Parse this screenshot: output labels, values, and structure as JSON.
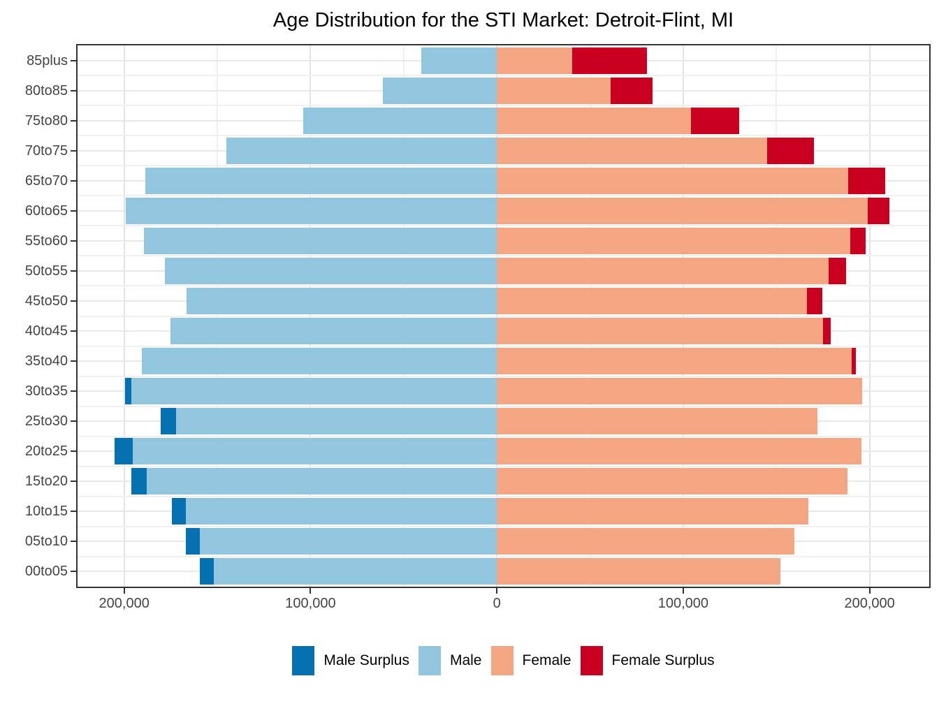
{
  "title": "Age Distribution for the STI Market: Detroit-Flint, MI",
  "colors": {
    "male_surplus": "#0571b0",
    "male": "#92c5de",
    "female": "#f4a582",
    "female_surplus": "#ca0020"
  },
  "legend": {
    "position": "bottom",
    "items": [
      {
        "label": "Male Surplus",
        "key": "male_surplus"
      },
      {
        "label": "Male",
        "key": "male"
      },
      {
        "label": "Female",
        "key": "female"
      },
      {
        "label": "Female Surplus",
        "key": "female_surplus"
      }
    ]
  },
  "chart_data": {
    "type": "bar",
    "subtype": "population-pyramid-horizontal",
    "title": "Age Distribution for the STI Market: Detroit-Flint, MI",
    "categories_top_to_bottom": [
      "85plus",
      "80to85",
      "75to80",
      "70to75",
      "65to70",
      "60to65",
      "55to60",
      "50to55",
      "45to50",
      "40to45",
      "35to40",
      "30to35",
      "25to30",
      "20to25",
      "15to20",
      "10to15",
      "05to10",
      "00to05"
    ],
    "series": [
      {
        "name": "Male",
        "side": "left",
        "values": [
          40500,
          61000,
          104000,
          145000,
          188500,
          199000,
          189500,
          178000,
          166500,
          175000,
          190500,
          199500,
          180500,
          205000,
          196000,
          174500,
          167000,
          159500
        ]
      },
      {
        "name": "Female",
        "side": "right",
        "values": [
          80500,
          83500,
          130000,
          170000,
          208500,
          210500,
          198000,
          187500,
          174500,
          179000,
          192500,
          196000,
          172000,
          195500,
          188000,
          167000,
          159500,
          152000
        ]
      }
    ],
    "segment_rule": "matched = min(male,female) drawn as Male/Female; excess drawn as Male Surplus (far left) or Female Surplus (far right)",
    "xlim": [
      -225000,
      232000
    ],
    "x_tick_values": [
      -200000,
      -100000,
      0,
      100000,
      200000
    ],
    "x_tick_labels": [
      "200,000",
      "100,000",
      "0",
      "100,000",
      "200,000"
    ],
    "x_minor_values": [
      -150000,
      -50000,
      50000,
      150000
    ],
    "grid": true,
    "legend_position": "bottom",
    "bar_fill_keys": {
      "left_main": "male",
      "left_surplus": "male_surplus",
      "right_main": "female",
      "right_surplus": "female_surplus"
    }
  }
}
